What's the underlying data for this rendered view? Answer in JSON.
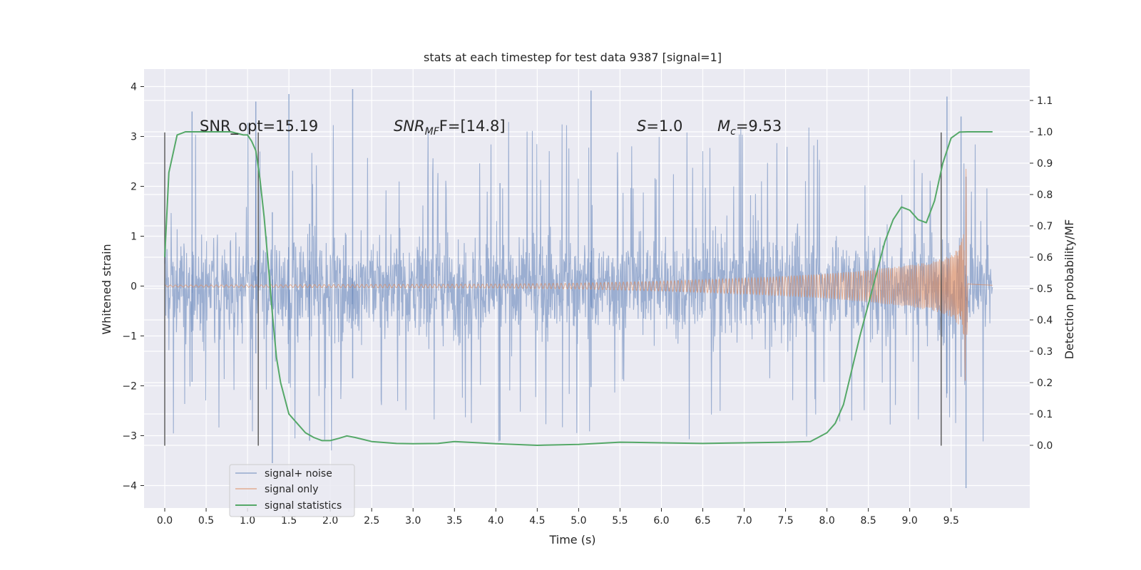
{
  "chart_data": {
    "type": "line",
    "title": "stats at each timestep for test data 9387 [signal=1]",
    "xlabel": "Time (s)",
    "ylabel_left": "Whitened strain",
    "ylabel_right": "Detection probability/MF",
    "xlim": [
      -0.25,
      10.45
    ],
    "ylim_left": [
      -4.45,
      4.35
    ],
    "ylim_right": [
      -0.2,
      1.2
    ],
    "x_ticks": [
      "0.0",
      "0.5",
      "1.0",
      "1.5",
      "2.0",
      "2.5",
      "3.0",
      "3.5",
      "4.0",
      "4.5",
      "5.0",
      "5.5",
      "6.0",
      "6.5",
      "7.0",
      "7.5",
      "8.0",
      "8.5",
      "9.0",
      "9.5"
    ],
    "y_ticks_left": [
      "−4",
      "−3",
      "−2",
      "−1",
      "0",
      "1",
      "2",
      "3",
      "4"
    ],
    "y_ticks_right": [
      "0.0",
      "0.1",
      "0.2",
      "0.3",
      "0.4",
      "0.5",
      "0.6",
      "0.7",
      "0.8",
      "0.9",
      "1.0",
      "1.1"
    ],
    "grid": true,
    "legend_position": "lower-left",
    "annotations": {
      "snr_opt": "SNR_opt=15.19",
      "snr_mf_main": "SNR",
      "snr_mf_sub": "MF",
      "snr_mf_tail": "F=[14.8]",
      "s_main": "S",
      "s_tail": "=1.0",
      "mc_main": "M",
      "mc_sub": "c",
      "mc_tail": "=9.53"
    },
    "vertical_markers": [
      0.0,
      1.13,
      9.38
    ],
    "noise_envelope": {
      "time_range": [
        0.0,
        10.0
      ],
      "typical_range": [
        -1.8,
        1.8
      ],
      "peak_max": 3.95,
      "peak_min": -4.05
    },
    "series": [
      {
        "name": "signal+ noise",
        "color": "#4c72b0",
        "axis": "left"
      },
      {
        "name": "signal only",
        "color": "#dd8452",
        "axis": "left",
        "envelope_x": [
          0.0,
          2.0,
          4.0,
          5.0,
          6.0,
          7.0,
          7.5,
          8.0,
          8.5,
          9.0,
          9.3,
          9.5,
          9.6,
          9.65,
          9.68,
          9.7,
          10.0
        ],
        "envelope_y": [
          0.02,
          0.03,
          0.04,
          0.06,
          0.1,
          0.16,
          0.2,
          0.25,
          0.32,
          0.42,
          0.5,
          0.62,
          0.8,
          1.05,
          2.4,
          0.05,
          0.02
        ]
      },
      {
        "name": "signal statistics",
        "color": "#55a868",
        "axis": "right",
        "x": [
          0.0,
          0.05,
          0.1,
          0.15,
          0.25,
          0.4,
          0.6,
          0.8,
          0.95,
          1.0,
          1.05,
          1.1,
          1.15,
          1.2,
          1.25,
          1.3,
          1.35,
          1.4,
          1.5,
          1.6,
          1.7,
          1.8,
          1.9,
          2.0,
          2.1,
          2.2,
          2.3,
          2.5,
          2.8,
          3.0,
          3.3,
          3.5,
          3.8,
          4.0,
          4.5,
          5.0,
          5.5,
          6.0,
          6.5,
          7.0,
          7.5,
          7.8,
          8.0,
          8.1,
          8.2,
          8.3,
          8.4,
          8.5,
          8.6,
          8.7,
          8.8,
          8.9,
          9.0,
          9.1,
          9.2,
          9.3,
          9.4,
          9.5,
          9.6,
          9.7,
          9.8,
          9.9,
          10.0
        ],
        "y": [
          0.6,
          0.87,
          0.93,
          0.99,
          1.0,
          1.0,
          1.0,
          1.0,
          0.99,
          0.99,
          0.97,
          0.94,
          0.85,
          0.73,
          0.58,
          0.42,
          0.28,
          0.2,
          0.1,
          0.07,
          0.04,
          0.025,
          0.015,
          0.015,
          0.022,
          0.03,
          0.025,
          0.012,
          0.006,
          0.005,
          0.006,
          0.012,
          0.008,
          0.005,
          0.0,
          0.003,
          0.01,
          0.008,
          0.006,
          0.008,
          0.01,
          0.012,
          0.04,
          0.07,
          0.13,
          0.24,
          0.35,
          0.45,
          0.55,
          0.65,
          0.72,
          0.76,
          0.75,
          0.72,
          0.71,
          0.78,
          0.9,
          0.98,
          0.999,
          1.0,
          1.0,
          1.0,
          1.0
        ]
      }
    ]
  }
}
